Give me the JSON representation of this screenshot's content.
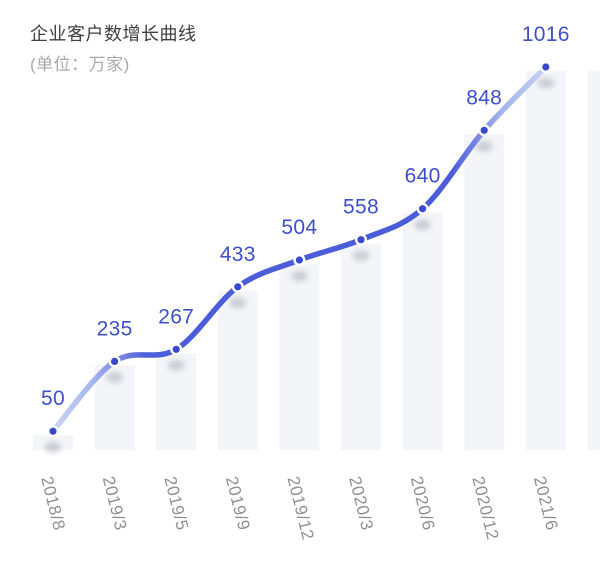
{
  "header": {
    "title": "企业客户数增长曲线",
    "subtitle": "(单位：万家)"
  },
  "chart_data": {
    "type": "line",
    "title": "企业客户数增长曲线",
    "subtitle": "(单位：万家)",
    "x": [
      "2018/8",
      "2019/3",
      "2019/5",
      "2019/9",
      "2019/12",
      "2020/3",
      "2020/6",
      "2020/12",
      "2021/6"
    ],
    "values": [
      50,
      235,
      267,
      433,
      504,
      558,
      640,
      848,
      1016
    ],
    "xlabel": "",
    "ylabel": "万家",
    "ylim": [
      0,
      1050
    ],
    "grid": false,
    "legend_position": "none",
    "smooth": true,
    "point_labels_visible": true,
    "background_bars_visible": true
  },
  "colors": {
    "line_strong": "#4c5dd9",
    "line_faded_start": "#ccd6f4",
    "line_faded_end": "#c6d1f3",
    "line_mid_fade": "#a5b4ec",
    "dot_fill": "#3849cf",
    "dot_ring": "#ffffff",
    "value_label": "#3e50c8",
    "bar_background": "#f3f5f8",
    "dot_shadow": "#9ba1ab",
    "title_text": "#404040",
    "subtitle_text": "#a8a8a8",
    "axis_label_text": "#909090",
    "page_background": "#ffffff"
  }
}
